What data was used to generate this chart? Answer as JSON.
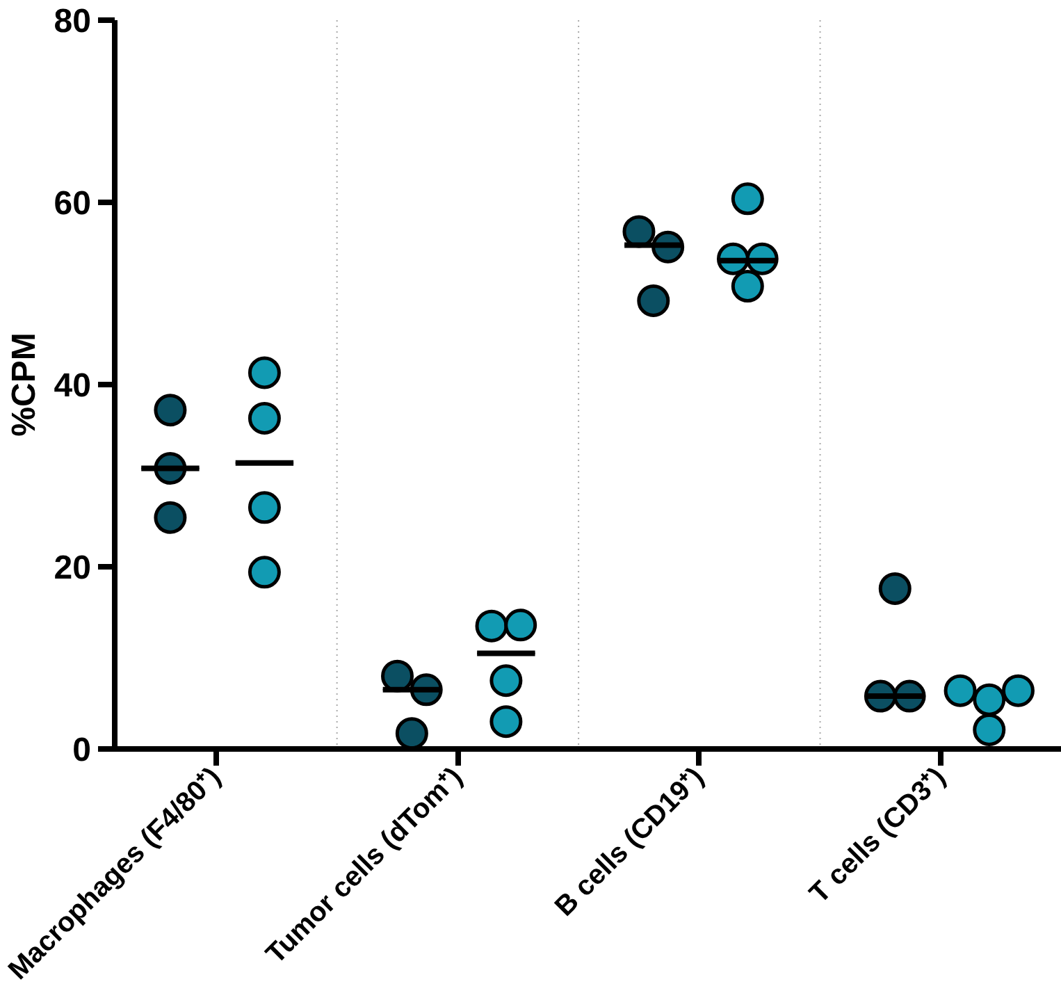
{
  "chart_data": {
    "type": "scatter",
    "ylabel": "%CPM",
    "categories": [
      "Macrophages (F4/80⁺)",
      "Tumor cells (dTom⁺)",
      "B cells (CD19⁺)",
      "T cells (CD3⁺)"
    ],
    "ylim": [
      0,
      80
    ],
    "yticks": [
      0,
      20,
      40,
      60,
      80
    ],
    "grid": "x",
    "marker": "circle",
    "series": [
      {
        "color": "#0b4f62",
        "x": [
          "Macrophages (F4/80⁺)",
          "Macrophages (F4/80⁺)",
          "Macrophages (F4/80⁺)",
          "Tumor cells (dTom⁺)",
          "Tumor cells (dTom⁺)",
          "Tumor cells (dTom⁺)",
          "B cells (CD19⁺)",
          "B cells (CD19⁺)",
          "B cells (CD19⁺)",
          "T cells (CD3⁺)",
          "T cells (CD3⁺)",
          "T cells (CD3⁺)"
        ],
        "values": [
          37.2,
          30.8,
          25.4,
          8.0,
          6.5,
          1.7,
          56.8,
          55.1,
          49.2,
          17.6,
          5.8,
          5.8
        ]
      },
      {
        "color": "#129bb3",
        "x": [
          "Macrophages (F4/80⁺)",
          "Macrophages (F4/80⁺)",
          "Macrophages (F4/80⁺)",
          "Macrophages (F4/80⁺)",
          "Tumor cells (dTom⁺)",
          "Tumor cells (dTom⁺)",
          "Tumor cells (dTom⁺)",
          "Tumor cells (dTom⁺)",
          "B cells (CD19⁺)",
          "B cells (CD19⁺)",
          "B cells (CD19⁺)",
          "B cells (CD19⁺)",
          "T cells (CD3⁺)",
          "T cells (CD3⁺)",
          "T cells (CD3⁺)",
          "T cells (CD3⁺)"
        ],
        "values": [
          41.3,
          36.3,
          26.5,
          19.4,
          13.5,
          13.6,
          7.5,
          3.0,
          60.4,
          53.8,
          53.8,
          50.8,
          6.4,
          5.4,
          6.4,
          2.1
        ]
      },
      {
        "type": "box",
        "color": "#000000",
        "boxes": [
          {
            "low": 30.8,
            "q1": 30.8,
            "median": 30.8,
            "q3": 30.8,
            "high": 30.8
          },
          {
            "low": 6.5,
            "q1": 6.5,
            "median": 6.5,
            "q3": 6.5,
            "high": 6.5
          },
          {
            "low": 55.3,
            "q1": 55.3,
            "median": 55.3,
            "q3": 55.3,
            "high": 55.3
          },
          {
            "low": 5.8,
            "q1": 5.8,
            "median": 5.8,
            "q3": 5.8,
            "high": 5.8
          }
        ]
      },
      {
        "type": "box",
        "color": "#000000",
        "boxes": [
          {
            "low": 31.4,
            "q1": 31.4,
            "median": 31.4,
            "q3": 31.4,
            "high": 31.4
          },
          {
            "low": 10.5,
            "q1": 10.5,
            "median": 10.5,
            "q3": 10.5,
            "high": 10.5
          },
          {
            "low": 53.6,
            "q1": 53.6,
            "median": 53.6,
            "q3": 53.6,
            "high": 53.6
          },
          null
        ]
      }
    ]
  }
}
